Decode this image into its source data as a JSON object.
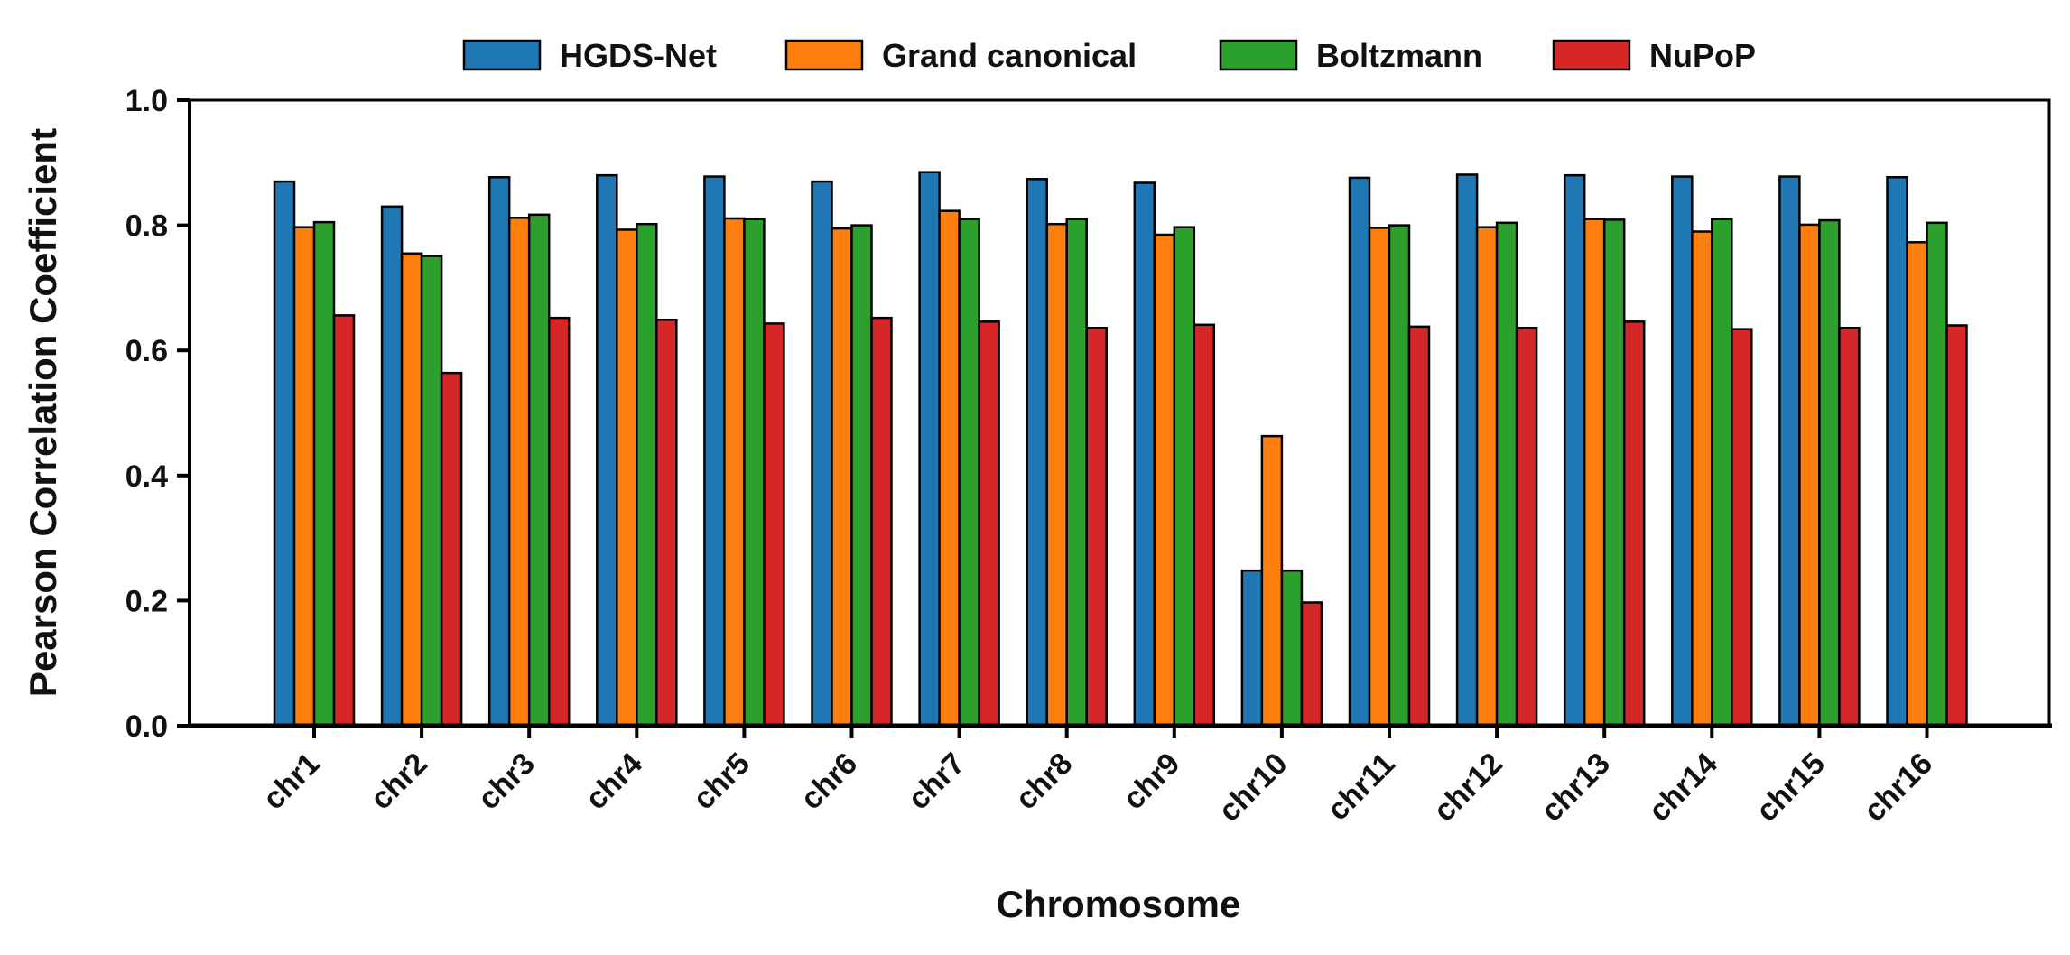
{
  "chart_data": {
    "type": "bar",
    "title": "",
    "xlabel": "Chromosome",
    "ylabel": "Pearson Correlation Coefficient",
    "ylim": [
      0,
      1.0
    ],
    "yticks": [
      0.0,
      0.2,
      0.4,
      0.6,
      0.8,
      1.0
    ],
    "ytick_labels": [
      "0.0",
      "0.2",
      "0.4",
      "0.6",
      "0.8",
      "1.0"
    ],
    "categories": [
      "chr1",
      "chr2",
      "chr3",
      "chr4",
      "chr5",
      "chr6",
      "chr7",
      "chr8",
      "chr9",
      "chr10",
      "chr11",
      "chr12",
      "chr13",
      "chr14",
      "chr15",
      "chr16"
    ],
    "legend_position": "top",
    "grid": false,
    "series": [
      {
        "name": "HGDS-Net",
        "color": "#1f77b4",
        "values": [
          0.87,
          0.83,
          0.877,
          0.88,
          0.878,
          0.87,
          0.885,
          0.874,
          0.868,
          0.248,
          0.876,
          0.881,
          0.88,
          0.878,
          0.878,
          0.877
        ]
      },
      {
        "name": "Grand canonical",
        "color": "#ff7f0e",
        "values": [
          0.797,
          0.755,
          0.812,
          0.793,
          0.811,
          0.795,
          0.823,
          0.802,
          0.785,
          0.463,
          0.796,
          0.797,
          0.81,
          0.79,
          0.801,
          0.773
        ]
      },
      {
        "name": "Boltzmann",
        "color": "#2ca02c",
        "values": [
          0.805,
          0.751,
          0.817,
          0.802,
          0.81,
          0.8,
          0.81,
          0.81,
          0.797,
          0.248,
          0.8,
          0.804,
          0.809,
          0.81,
          0.808,
          0.804
        ]
      },
      {
        "name": "NuPoP",
        "color": "#d62728",
        "values": [
          0.656,
          0.564,
          0.652,
          0.649,
          0.643,
          0.652,
          0.646,
          0.636,
          0.641,
          0.197,
          0.638,
          0.636,
          0.646,
          0.634,
          0.636,
          0.64
        ]
      }
    ]
  }
}
